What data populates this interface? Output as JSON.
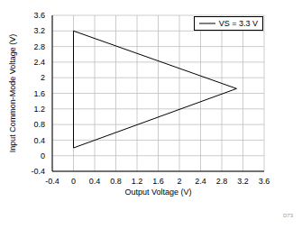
{
  "chart_data": {
    "type": "line",
    "x_label": "Output Voltage (V)",
    "y_label": "Input Common-Mode Voltage (V)",
    "series": [
      {
        "name": "VS = 3.3 V",
        "color": "#000000",
        "x": [
          0,
          0,
          3.08,
          0
        ],
        "values": [
          0.2,
          3.2,
          1.72,
          0.2
        ]
      }
    ],
    "xlim": [
      -0.4,
      3.6
    ],
    "xticks": [
      -0.4,
      0,
      0.4,
      0.8,
      1.2,
      1.6,
      2,
      2.4,
      2.8,
      3.2,
      3.6
    ],
    "ylim": [
      -0.4,
      3.6
    ],
    "yticks": [
      -0.4,
      0,
      0.4,
      0.8,
      1.2,
      1.6,
      2,
      2.4,
      2.8,
      3.2,
      3.6
    ],
    "grid": true,
    "legend": "upper right",
    "annotations": [
      "D73"
    ]
  }
}
